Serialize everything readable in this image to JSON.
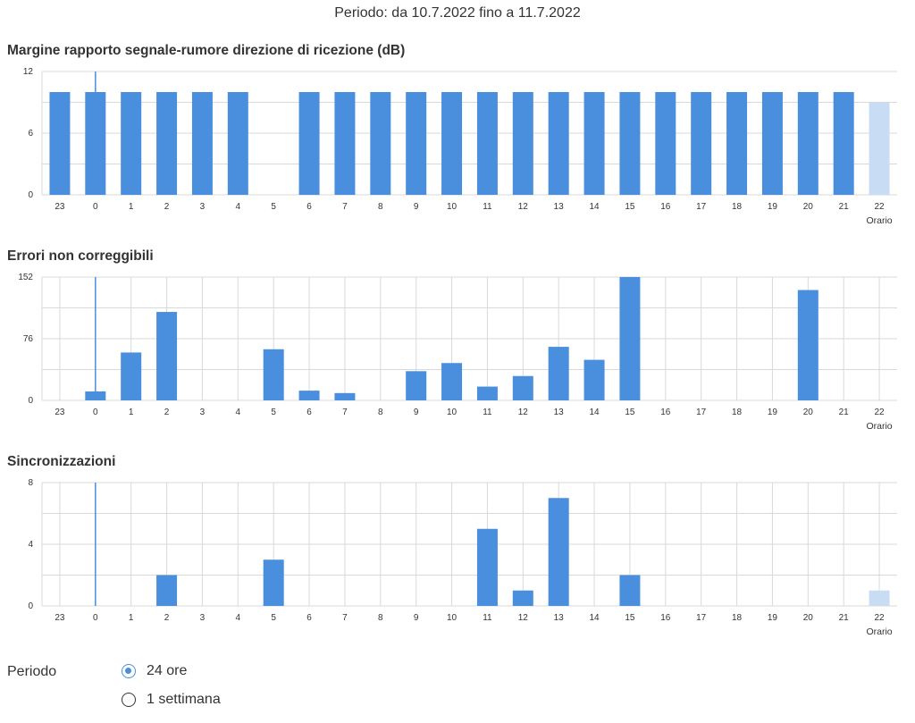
{
  "period_header": "Periodo: da 10.7.2022 fino a 11.7.2022",
  "x_axis_title": "Orario",
  "colors": {
    "bar": "#4a8fdd",
    "bar_partial": "#c8dcf3",
    "grid": "#d9d9d9",
    "marker": "#4a8fdd"
  },
  "chart_data": [
    {
      "type": "bar",
      "title": "Margine rapporto segnale-rumore direzione di ricezione (dB)",
      "categories": [
        "23",
        "0",
        "1",
        "2",
        "3",
        "4",
        "5",
        "6",
        "7",
        "8",
        "9",
        "10",
        "11",
        "12",
        "13",
        "14",
        "15",
        "16",
        "17",
        "18",
        "19",
        "20",
        "21",
        "22"
      ],
      "values": [
        10,
        10,
        10,
        10,
        10,
        10,
        null,
        10,
        10,
        10,
        10,
        10,
        10,
        10,
        10,
        10,
        10,
        10,
        10,
        10,
        10,
        10,
        10,
        9
      ],
      "partial_last": true,
      "y_ticks": [
        "12",
        "6",
        "0"
      ],
      "ylim": [
        0,
        12
      ],
      "xlabel": "Orario",
      "grid": "horizontal",
      "marker_category": "0"
    },
    {
      "type": "bar",
      "title": "Errori non correggibili",
      "categories": [
        "23",
        "0",
        "1",
        "2",
        "3",
        "4",
        "5",
        "6",
        "7",
        "8",
        "9",
        "10",
        "11",
        "12",
        "13",
        "14",
        "15",
        "16",
        "17",
        "18",
        "19",
        "20",
        "21",
        "22"
      ],
      "values": [
        0,
        11,
        59,
        109,
        0,
        0,
        63,
        12,
        9,
        0,
        36,
        46,
        17,
        30,
        66,
        50,
        152,
        0,
        0,
        0,
        0,
        136,
        0,
        0
      ],
      "partial_last": false,
      "y_ticks": [
        "152",
        "76",
        "0"
      ],
      "ylim": [
        0,
        152
      ],
      "xlabel": "Orario",
      "grid": "both",
      "marker_category": "0"
    },
    {
      "type": "bar",
      "title": "Sincronizzazioni",
      "categories": [
        "23",
        "0",
        "1",
        "2",
        "3",
        "4",
        "5",
        "6",
        "7",
        "8",
        "9",
        "10",
        "11",
        "12",
        "13",
        "14",
        "15",
        "16",
        "17",
        "18",
        "19",
        "20",
        "21",
        "22"
      ],
      "values": [
        0,
        0,
        0,
        2,
        0,
        0,
        3,
        0,
        0,
        0,
        0,
        0,
        5,
        1,
        7,
        0,
        2,
        0,
        0,
        0,
        0,
        0,
        0,
        1
      ],
      "partial_last": true,
      "y_ticks": [
        "8",
        "4",
        "0"
      ],
      "ylim": [
        0,
        8
      ],
      "xlabel": "Orario",
      "grid": "both",
      "marker_category": "0"
    }
  ],
  "controls": {
    "label": "Periodo",
    "options": [
      {
        "label": "24 ore",
        "selected": true
      },
      {
        "label": "1 settimana",
        "selected": false
      }
    ]
  }
}
